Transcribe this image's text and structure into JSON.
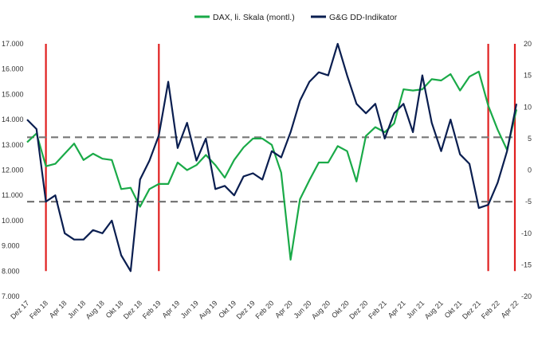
{
  "chart_data": {
    "type": "line",
    "legend": {
      "position": "top-right"
    },
    "grid": false,
    "x_labels": [
      "Dez 17",
      "Feb 18",
      "Apr 18",
      "Jun 18",
      "Aug 18",
      "Okt 18",
      "Dez 18",
      "Feb 19",
      "Apr 19",
      "Jun 19",
      "Aug 19",
      "Okt 19",
      "Dez 19",
      "Feb 20",
      "Apr 20",
      "Jun 20",
      "Aug 20",
      "Okt 20",
      "Dez 20",
      "Feb 21",
      "Apr 21",
      "Jun 21",
      "Aug 21",
      "Okt 21",
      "Dez 21",
      "Feb 22",
      "Apr 22"
    ],
    "x_index_range": [
      0,
      52
    ],
    "left_axis": {
      "min": 7000,
      "max": 17000,
      "step": 1000,
      "ticks": [
        "7.000",
        "8.000",
        "9.000",
        "10.000",
        "11.000",
        "12.000",
        "13.000",
        "14.000",
        "15.000",
        "16.000",
        "17.000"
      ]
    },
    "right_axis": {
      "min": -20,
      "max": 20,
      "step": 5,
      "ticks": [
        "-20",
        "-15",
        "-10",
        "-5",
        "0",
        "5",
        "10",
        "15",
        "20"
      ]
    },
    "series": [
      {
        "name": "DAX, li. Skala (montl.)",
        "axis": "left",
        "color": "#1aaa48",
        "values": [
          13100,
          13450,
          12150,
          12250,
          12650,
          13050,
          12400,
          12650,
          12450,
          12400,
          11250,
          11300,
          10550,
          11250,
          11450,
          11450,
          12300,
          12000,
          12200,
          12600,
          12200,
          11700,
          12400,
          12900,
          13250,
          13250,
          13000,
          11900,
          8450,
          10850,
          11600,
          12300,
          12300,
          12950,
          12750,
          11550,
          13350,
          13700,
          13500,
          13850,
          15200,
          15150,
          15200,
          15600,
          15550,
          15800,
          15150,
          15700,
          15900,
          14550,
          13600,
          12800,
          14400
        ]
      },
      {
        "name": "G&G DD-Indikator",
        "axis": "right",
        "color": "#0a1e50",
        "values": [
          8,
          6.5,
          -5,
          -4,
          -10,
          -11,
          -11,
          -9.5,
          -10,
          -8,
          -13.5,
          -16,
          -1.5,
          1.5,
          5.5,
          14,
          3.5,
          7.5,
          1.5,
          5,
          -3,
          -2.5,
          -4,
          -1,
          -0.5,
          -1.5,
          3,
          2,
          6,
          11,
          14,
          15.5,
          15,
          20,
          15,
          10.5,
          9,
          10.5,
          5,
          9,
          10.5,
          6,
          15,
          7.5,
          3,
          8,
          2.5,
          1,
          -6,
          -5.5,
          -2,
          3,
          10.5
        ]
      }
    ],
    "vertical_markers": {
      "color": "#e02020",
      "at_index": [
        2,
        14,
        49,
        52
      ],
      "range_left": [
        8000,
        17000
      ]
    },
    "horizontal_markers": {
      "color": "#777777",
      "style": "dashed",
      "at_left_value": [
        13300,
        10750
      ]
    }
  }
}
